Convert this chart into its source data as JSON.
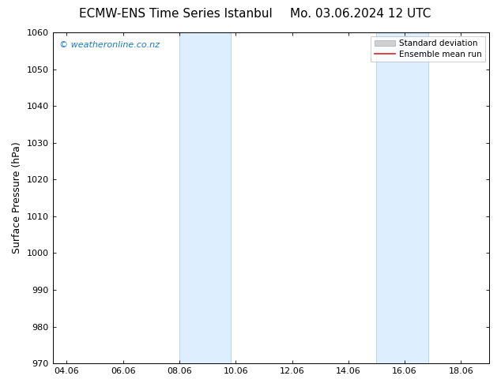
{
  "title_left": "ECMW-ENS Time Series Istanbul",
  "title_right": "Mo. 03.06.2024 12 UTC",
  "ylabel": "Surface Pressure (hPa)",
  "ylim": [
    970,
    1060
  ],
  "yticks": [
    970,
    980,
    990,
    1000,
    1010,
    1020,
    1030,
    1040,
    1050,
    1060
  ],
  "xlim_start": 3.5,
  "xlim_end": 19.0,
  "xtick_labels": [
    "04.06",
    "06.06",
    "08.06",
    "10.06",
    "12.06",
    "14.06",
    "16.06",
    "18.06"
  ],
  "xtick_positions": [
    4,
    6,
    8,
    10,
    12,
    14,
    16,
    18
  ],
  "shade_bands": [
    {
      "x_start": 8.0,
      "x_end": 9.83
    },
    {
      "x_start": 15.0,
      "x_end": 16.83
    }
  ],
  "shade_color": "#ddeeff",
  "shade_edge_color": "#b8d4ef",
  "watermark_text": "© weatheronline.co.nz",
  "watermark_color": "#1a7abf",
  "legend_std_color": "#d0d0d0",
  "legend_std_edge": "#aaaaaa",
  "legend_mean_color": "#dd2222",
  "background_color": "#ffffff",
  "plot_bg_color": "#ffffff",
  "title_fontsize": 11,
  "tick_fontsize": 8,
  "ylabel_fontsize": 9,
  "legend_fontsize": 7.5,
  "watermark_fontsize": 8,
  "figsize": [
    6.34,
    4.9
  ],
  "dpi": 100
}
